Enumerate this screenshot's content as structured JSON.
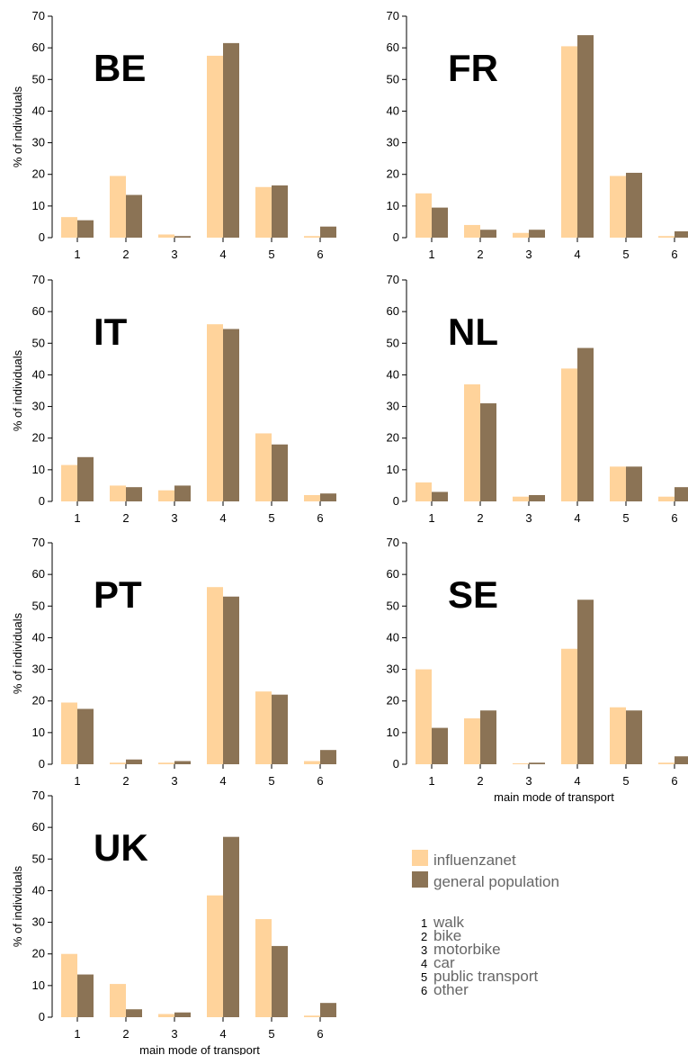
{
  "colors": {
    "influenzanet": "#FFD39B",
    "general_population": "#8B7355",
    "legend_text": "#666666"
  },
  "chart_data": [
    {
      "type": "bar",
      "title": "BE",
      "categories": [
        "1",
        "2",
        "3",
        "4",
        "5",
        "6"
      ],
      "series": [
        {
          "name": "influenzanet",
          "values": [
            6.5,
            19.5,
            1.0,
            57.5,
            16.0,
            0.5
          ]
        },
        {
          "name": "general population",
          "values": [
            5.5,
            13.5,
            0.5,
            61.5,
            16.5,
            3.5
          ]
        }
      ],
      "ylabel": "% of individuals",
      "xlabel": "",
      "ylim": [
        0,
        70
      ],
      "yticks": [
        0,
        10,
        20,
        30,
        40,
        50,
        60,
        70
      ]
    },
    {
      "type": "bar",
      "title": "FR",
      "categories": [
        "1",
        "2",
        "3",
        "4",
        "5",
        "6"
      ],
      "series": [
        {
          "name": "influenzanet",
          "values": [
            14.0,
            4.0,
            1.5,
            60.5,
            19.5,
            0.5
          ]
        },
        {
          "name": "general population",
          "values": [
            9.5,
            2.5,
            2.5,
            64.0,
            20.5,
            2.0
          ]
        }
      ],
      "ylabel": "",
      "xlabel": "",
      "ylim": [
        0,
        70
      ],
      "yticks": [
        0,
        10,
        20,
        30,
        40,
        50,
        60,
        70
      ]
    },
    {
      "type": "bar",
      "title": "IT",
      "categories": [
        "1",
        "2",
        "3",
        "4",
        "5",
        "6"
      ],
      "series": [
        {
          "name": "influenzanet",
          "values": [
            11.5,
            5.0,
            3.5,
            56.0,
            21.5,
            2.0
          ]
        },
        {
          "name": "general population",
          "values": [
            14.0,
            4.5,
            5.0,
            54.5,
            18.0,
            2.5
          ]
        }
      ],
      "ylabel": "% of individuals",
      "xlabel": "",
      "ylim": [
        0,
        70
      ],
      "yticks": [
        0,
        10,
        20,
        30,
        40,
        50,
        60,
        70
      ]
    },
    {
      "type": "bar",
      "title": "NL",
      "categories": [
        "1",
        "2",
        "3",
        "4",
        "5",
        "6"
      ],
      "series": [
        {
          "name": "influenzanet",
          "values": [
            6.0,
            37.0,
            1.5,
            42.0,
            11.0,
            1.5
          ]
        },
        {
          "name": "general population",
          "values": [
            3.0,
            31.0,
            2.0,
            48.5,
            11.0,
            4.5
          ]
        }
      ],
      "ylabel": "",
      "xlabel": "",
      "ylim": [
        0,
        70
      ],
      "yticks": [
        0,
        10,
        20,
        30,
        40,
        50,
        60,
        70
      ]
    },
    {
      "type": "bar",
      "title": "PT",
      "categories": [
        "1",
        "2",
        "3",
        "4",
        "5",
        "6"
      ],
      "series": [
        {
          "name": "influenzanet",
          "values": [
            19.5,
            0.5,
            0.5,
            56.0,
            23.0,
            1.0
          ]
        },
        {
          "name": "general population",
          "values": [
            17.5,
            1.5,
            1.0,
            53.0,
            22.0,
            4.5
          ]
        }
      ],
      "ylabel": "% of individuals",
      "xlabel": "",
      "ylim": [
        0,
        70
      ],
      "yticks": [
        0,
        10,
        20,
        30,
        40,
        50,
        60,
        70
      ]
    },
    {
      "type": "bar",
      "title": "SE",
      "categories": [
        "1",
        "2",
        "3",
        "4",
        "5",
        "6"
      ],
      "series": [
        {
          "name": "influenzanet",
          "values": [
            30.0,
            14.5,
            0.3,
            36.5,
            18.0,
            0.5
          ]
        },
        {
          "name": "general population",
          "values": [
            11.5,
            17.0,
            0.5,
            52.0,
            17.0,
            2.5
          ]
        }
      ],
      "ylabel": "",
      "xlabel": "main mode of transport",
      "ylim": [
        0,
        70
      ],
      "yticks": [
        0,
        10,
        20,
        30,
        40,
        50,
        60,
        70
      ]
    },
    {
      "type": "bar",
      "title": "UK",
      "categories": [
        "1",
        "2",
        "3",
        "4",
        "5",
        "6"
      ],
      "series": [
        {
          "name": "influenzanet",
          "values": [
            20.0,
            10.5,
            1.0,
            38.5,
            31.0,
            0.5
          ]
        },
        {
          "name": "general population",
          "values": [
            13.5,
            2.5,
            1.5,
            57.0,
            22.5,
            4.5
          ]
        }
      ],
      "ylabel": "% of individuals",
      "xlabel": "main mode of transport",
      "ylim": [
        0,
        70
      ],
      "yticks": [
        0,
        10,
        20,
        30,
        40,
        50,
        60,
        70
      ]
    }
  ],
  "legend": {
    "items": [
      {
        "label": "influenzanet",
        "color": "#FFD39B"
      },
      {
        "label": "general population",
        "color": "#8B7355"
      }
    ],
    "modes": [
      {
        "num": "1",
        "label": "walk"
      },
      {
        "num": "2",
        "label": "bike"
      },
      {
        "num": "3",
        "label": "motorbike"
      },
      {
        "num": "4",
        "label": "car"
      },
      {
        "num": "5",
        "label": "public transport"
      },
      {
        "num": "6",
        "label": "other"
      }
    ]
  }
}
